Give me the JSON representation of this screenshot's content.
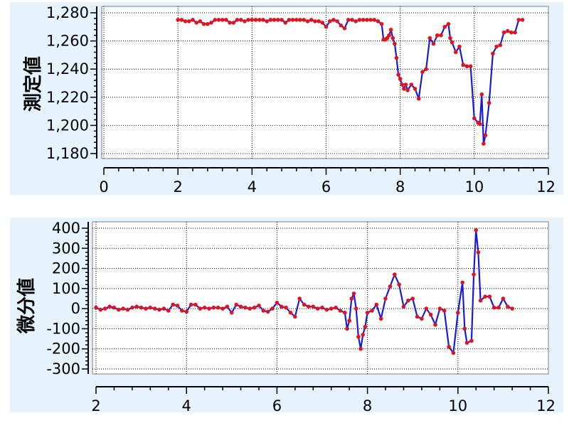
{
  "chart_data": [
    {
      "type": "line",
      "ylabel": "測定値",
      "xlabel": "",
      "xlim": [
        0,
        12
      ],
      "ylim": [
        1180,
        1280
      ],
      "xticks": [
        0,
        2,
        4,
        6,
        8,
        10,
        12
      ],
      "yticks": [
        1180,
        1200,
        1220,
        1240,
        1260,
        1280
      ],
      "xtick_labels": [
        "0",
        "2",
        "4",
        "6",
        "8",
        "10",
        "12"
      ],
      "ytick_labels": [
        "1,180",
        "1,200",
        "1,220",
        "1,240",
        "1,260",
        "1,280"
      ],
      "grid": true,
      "line_color": "#1a1adc",
      "point_color": "#e0141e",
      "series": [
        {
          "x": [
            2.0,
            2.1,
            2.2,
            2.3,
            2.4,
            2.5,
            2.6,
            2.7,
            2.8,
            2.9,
            3.0,
            3.1,
            3.2,
            3.3,
            3.4,
            3.5,
            3.6,
            3.7,
            3.8,
            3.9,
            4.0,
            4.1,
            4.2,
            4.3,
            4.4,
            4.5,
            4.6,
            4.7,
            4.8,
            4.9,
            5.0,
            5.1,
            5.2,
            5.3,
            5.4,
            5.5,
            5.6,
            5.7,
            5.8,
            5.9,
            6.0,
            6.1,
            6.2,
            6.3,
            6.4,
            6.5,
            6.6,
            6.7,
            6.8,
            6.9,
            7.0,
            7.1,
            7.2,
            7.3,
            7.4,
            7.5,
            7.55,
            7.6,
            7.65,
            7.7,
            7.75,
            7.8,
            7.85,
            7.9,
            7.95,
            8.0,
            8.05,
            8.1,
            8.15,
            8.2,
            8.3,
            8.4,
            8.5,
            8.6,
            8.7,
            8.8,
            8.9,
            9.0,
            9.1,
            9.2,
            9.3,
            9.35,
            9.4,
            9.5,
            9.6,
            9.7,
            9.8,
            9.9,
            10.0,
            10.1,
            10.15,
            10.2,
            10.25,
            10.3,
            10.4,
            10.5,
            10.6,
            10.7,
            10.8,
            10.9,
            11.0,
            11.1,
            11.2,
            11.3
          ],
          "y": [
            1275,
            1275,
            1274,
            1274,
            1275,
            1273,
            1274,
            1272,
            1272,
            1273,
            1275,
            1275,
            1275,
            1275,
            1273,
            1273,
            1275,
            1275,
            1274,
            1275,
            1275,
            1275,
            1275,
            1275,
            1274,
            1275,
            1275,
            1275,
            1275,
            1273,
            1275,
            1275,
            1275,
            1275,
            1275,
            1274,
            1275,
            1274,
            1274,
            1273,
            1270,
            1274,
            1275,
            1274,
            1271,
            1269,
            1275,
            1275,
            1274,
            1275,
            1275,
            1275,
            1275,
            1275,
            1274,
            1272,
            1261,
            1261,
            1262,
            1264,
            1268,
            1262,
            1258,
            1248,
            1236,
            1233,
            1229,
            1226,
            1229,
            1225,
            1229,
            1226,
            1219,
            1238,
            1240,
            1262,
            1258,
            1264,
            1264,
            1270,
            1272,
            1262,
            1259,
            1252,
            1256,
            1243,
            1242,
            1242,
            1205,
            1202,
            1201,
            1222,
            1187,
            1193,
            1216,
            1251,
            1256,
            1257,
            1266,
            1267,
            1266,
            1266,
            1275,
            1275
          ]
        }
      ]
    },
    {
      "type": "line",
      "ylabel": "微分値",
      "xlabel": "",
      "xlim": [
        2,
        12
      ],
      "ylim": [
        -300,
        400
      ],
      "xticks": [
        2,
        4,
        6,
        8,
        10,
        12
      ],
      "yticks": [
        -300,
        -200,
        -100,
        0,
        100,
        200,
        300,
        400
      ],
      "xtick_labels": [
        "2",
        "4",
        "6",
        "8",
        "10",
        "12"
      ],
      "ytick_labels": [
        "-300",
        "-200",
        "-100",
        "0",
        "100",
        "200",
        "300",
        "400"
      ],
      "grid": true,
      "line_color": "#1a1adc",
      "point_color": "#e0141e",
      "series": [
        {
          "x": [
            2.0,
            2.1,
            2.2,
            2.3,
            2.4,
            2.5,
            2.6,
            2.7,
            2.8,
            2.9,
            3.0,
            3.1,
            3.2,
            3.3,
            3.4,
            3.5,
            3.6,
            3.7,
            3.8,
            3.9,
            4.0,
            4.1,
            4.2,
            4.3,
            4.4,
            4.5,
            4.6,
            4.7,
            4.8,
            4.9,
            5.0,
            5.1,
            5.2,
            5.3,
            5.4,
            5.5,
            5.6,
            5.7,
            5.8,
            5.9,
            6.0,
            6.1,
            6.2,
            6.3,
            6.4,
            6.5,
            6.6,
            6.7,
            6.8,
            6.9,
            7.0,
            7.1,
            7.2,
            7.3,
            7.4,
            7.5,
            7.55,
            7.6,
            7.65,
            7.7,
            7.75,
            7.8,
            7.85,
            7.9,
            7.95,
            8.0,
            8.1,
            8.2,
            8.3,
            8.4,
            8.5,
            8.6,
            8.7,
            8.8,
            8.9,
            9.0,
            9.1,
            9.2,
            9.3,
            9.4,
            9.5,
            9.6,
            9.7,
            9.8,
            9.9,
            10.0,
            10.1,
            10.15,
            10.2,
            10.3,
            10.35,
            10.4,
            10.45,
            10.5,
            10.6,
            10.7,
            10.8,
            10.9,
            11.0,
            11.1,
            11.2
          ],
          "y": [
            5,
            -5,
            0,
            10,
            5,
            -5,
            0,
            -5,
            5,
            10,
            5,
            0,
            5,
            0,
            -5,
            0,
            -10,
            20,
            15,
            -10,
            -15,
            20,
            20,
            0,
            5,
            0,
            5,
            5,
            0,
            10,
            -20,
            20,
            10,
            5,
            0,
            5,
            15,
            -10,
            -15,
            0,
            30,
            10,
            5,
            -20,
            -40,
            50,
            20,
            10,
            10,
            0,
            5,
            -5,
            0,
            5,
            -10,
            -20,
            -100,
            -60,
            50,
            75,
            0,
            -140,
            -200,
            -130,
            -90,
            -20,
            -10,
            20,
            -50,
            50,
            110,
            170,
            120,
            10,
            40,
            50,
            -40,
            -50,
            0,
            -30,
            -80,
            0,
            -10,
            -190,
            -220,
            -20,
            130,
            -100,
            -170,
            -160,
            170,
            390,
            280,
            40,
            60,
            60,
            5,
            5,
            50,
            10,
            0
          ]
        }
      ]
    }
  ]
}
